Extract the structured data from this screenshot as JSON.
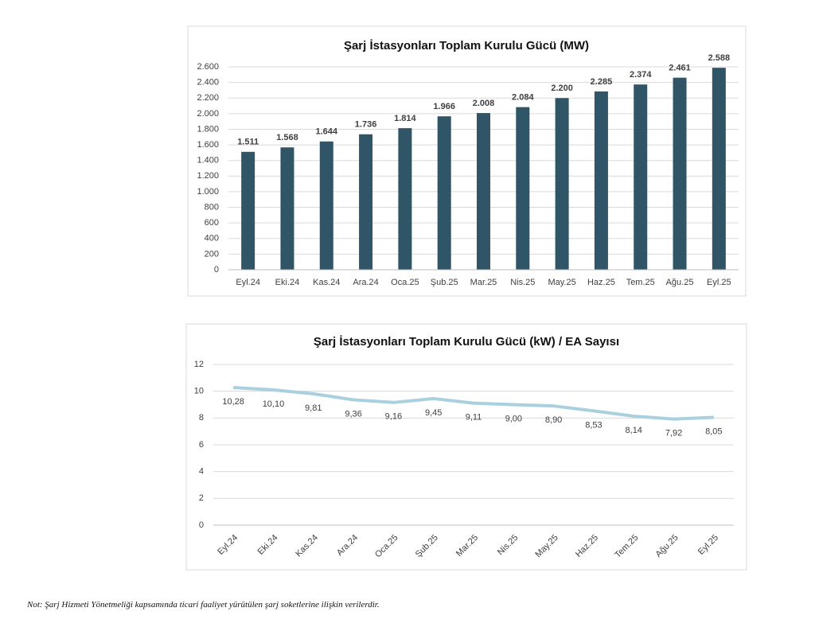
{
  "chart_data": [
    {
      "type": "bar",
      "title": "Şarj İstasyonları Toplam Kurulu Gücü (MW)",
      "categories": [
        "Eyl.24",
        "Eki.24",
        "Kas.24",
        "Ara.24",
        "Oca.25",
        "Şub.25",
        "Mar.25",
        "Nis.25",
        "May.25",
        "Haz.25",
        "Tem.25",
        "Ağu.25",
        "Eyl.25"
      ],
      "values": [
        1511,
        1568,
        1644,
        1736,
        1814,
        1966,
        2008,
        2084,
        2200,
        2285,
        2374,
        2461,
        2588
      ],
      "value_labels": [
        "1.511",
        "1.568",
        "1.644",
        "1.736",
        "1.814",
        "1.966",
        "2.008",
        "2.084",
        "2.200",
        "2.285",
        "2.374",
        "2.461",
        "2.588"
      ],
      "color": "#2f5567",
      "ylim": [
        0,
        2600
      ],
      "yticks": [
        0,
        200,
        400,
        600,
        800,
        {
          "value": 1000,
          "label": "1.000"
        },
        {
          "value": 1200,
          "label": "1.200"
        },
        {
          "value": 1400,
          "label": "1.400"
        },
        {
          "value": 1600,
          "label": "1.600"
        },
        {
          "value": 1800,
          "label": "1.800"
        },
        {
          "value": 2000,
          "label": "2.000"
        },
        {
          "value": 2200,
          "label": "2.200"
        },
        {
          "value": 2400,
          "label": "2.400"
        },
        {
          "value": 2600,
          "label": "2.600"
        }
      ],
      "grid": true
    },
    {
      "type": "line",
      "title": "Şarj İstasyonları Toplam Kurulu Gücü (kW) / EA Sayısı",
      "categories": [
        "Eyl.24",
        "Eki.24",
        "Kas.24",
        "Ara.24",
        "Oca.25",
        "Şub.25",
        "Mar.25",
        "Nis.25",
        "May.25",
        "Haz.25",
        "Tem.25",
        "Ağu.25",
        "Eyl.25"
      ],
      "values": [
        10.28,
        10.1,
        9.81,
        9.36,
        9.16,
        9.45,
        9.11,
        9.0,
        8.9,
        8.53,
        8.14,
        7.92,
        8.05
      ],
      "value_labels": [
        "10,28",
        "10,10",
        "9,81",
        "9,36",
        "9,16",
        "9,45",
        "9,11",
        "9,00",
        "8,90",
        "8,53",
        "8,14",
        "7,92",
        "8,05"
      ],
      "color": "#a9d0de",
      "ylim": [
        0,
        12
      ],
      "yticks": [
        0,
        2,
        4,
        6,
        8,
        10,
        12
      ],
      "grid": true
    }
  ],
  "note": "Not: Şarj Hizmeti Yönetmeliği kapsamında ticari faaliyet yürütülen şarj soketlerine ilişkin verilerdir."
}
